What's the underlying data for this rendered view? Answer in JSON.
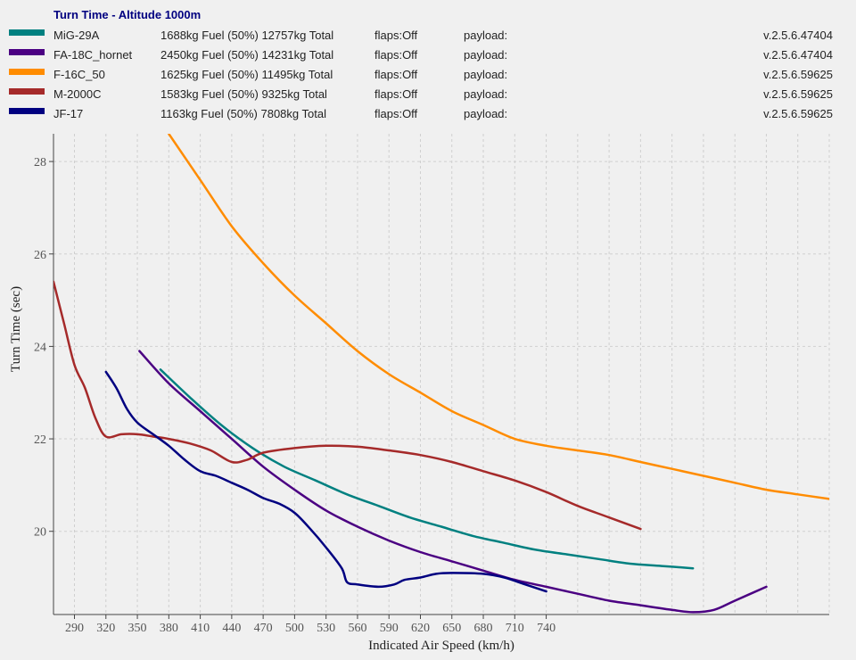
{
  "chart_data": {
    "type": "line",
    "title": "Turn Time - Altitude 1000m",
    "title_color": "#000080",
    "xlabel": "Indicated Air Speed (km/h)",
    "ylabel": "Turn Time (sec)",
    "xlim": [
      270,
      1010
    ],
    "ylim": [
      18.2,
      28.6
    ],
    "x_ticks": [
      290,
      320,
      350,
      380,
      410,
      440,
      470,
      500,
      530,
      560,
      590,
      620,
      650,
      680,
      710,
      740
    ],
    "x_gridlines": [
      290,
      320,
      350,
      380,
      410,
      440,
      470,
      500,
      530,
      560,
      590,
      620,
      650,
      680,
      710,
      740,
      770,
      800,
      830,
      860,
      890,
      920,
      950,
      980,
      1010
    ],
    "y_ticks": [
      20,
      22,
      24,
      26,
      28
    ],
    "grid": true,
    "legend_position": "top",
    "series": [
      {
        "name": "MiG-29A",
        "color": "#008080",
        "fuel": "1688kg Fuel (50%) 12757kg Total",
        "flaps": "flaps:Off",
        "payload": "payload:",
        "version": "v.2.5.6.47404",
        "points": [
          [
            372,
            23.5
          ],
          [
            400,
            22.9
          ],
          [
            430,
            22.3
          ],
          [
            460,
            21.8
          ],
          [
            490,
            21.4
          ],
          [
            520,
            21.1
          ],
          [
            550,
            20.8
          ],
          [
            580,
            20.55
          ],
          [
            610,
            20.3
          ],
          [
            640,
            20.1
          ],
          [
            670,
            19.9
          ],
          [
            700,
            19.75
          ],
          [
            730,
            19.6
          ],
          [
            760,
            19.5
          ],
          [
            790,
            19.4
          ],
          [
            820,
            19.3
          ],
          [
            850,
            19.25
          ],
          [
            880,
            19.2
          ]
        ]
      },
      {
        "name": "FA-18C_hornet",
        "color": "#4b0082",
        "fuel": "2450kg Fuel (50%) 14231kg Total",
        "flaps": "flaps:Off",
        "payload": "payload:",
        "version": "v.2.5.6.47404",
        "points": [
          [
            352,
            23.9
          ],
          [
            380,
            23.2
          ],
          [
            410,
            22.6
          ],
          [
            440,
            22.0
          ],
          [
            470,
            21.4
          ],
          [
            500,
            20.9
          ],
          [
            530,
            20.45
          ],
          [
            560,
            20.1
          ],
          [
            590,
            19.8
          ],
          [
            620,
            19.55
          ],
          [
            650,
            19.35
          ],
          [
            680,
            19.15
          ],
          [
            710,
            18.95
          ],
          [
            740,
            18.8
          ],
          [
            770,
            18.65
          ],
          [
            800,
            18.5
          ],
          [
            830,
            18.4
          ],
          [
            860,
            18.3
          ],
          [
            880,
            18.25
          ],
          [
            900,
            18.3
          ],
          [
            920,
            18.5
          ],
          [
            950,
            18.8
          ]
        ]
      },
      {
        "name": "F-16C_50",
        "color": "#ff8c00",
        "fuel": "1625kg Fuel (50%) 11495kg Total",
        "flaps": "flaps:Off",
        "payload": "payload:",
        "version": "v.2.5.6.59625",
        "points": [
          [
            380,
            28.6
          ],
          [
            410,
            27.6
          ],
          [
            440,
            26.6
          ],
          [
            470,
            25.8
          ],
          [
            500,
            25.1
          ],
          [
            530,
            24.5
          ],
          [
            560,
            23.9
          ],
          [
            590,
            23.4
          ],
          [
            620,
            23.0
          ],
          [
            650,
            22.6
          ],
          [
            680,
            22.3
          ],
          [
            710,
            22.0
          ],
          [
            740,
            21.85
          ],
          [
            770,
            21.75
          ],
          [
            800,
            21.65
          ],
          [
            830,
            21.5
          ],
          [
            860,
            21.35
          ],
          [
            890,
            21.2
          ],
          [
            920,
            21.05
          ],
          [
            950,
            20.9
          ],
          [
            980,
            20.8
          ],
          [
            1010,
            20.7
          ]
        ]
      },
      {
        "name": "M-2000C",
        "color": "#a52a2a",
        "fuel": "1583kg Fuel (50%) 9325kg Total",
        "flaps": "flaps:Off",
        "payload": "payload:",
        "version": "v.2.5.6.59625",
        "points": [
          [
            270,
            25.4
          ],
          [
            280,
            24.5
          ],
          [
            290,
            23.6
          ],
          [
            300,
            23.1
          ],
          [
            310,
            22.45
          ],
          [
            320,
            22.05
          ],
          [
            335,
            22.1
          ],
          [
            350,
            22.1
          ],
          [
            365,
            22.05
          ],
          [
            380,
            22.0
          ],
          [
            400,
            21.9
          ],
          [
            420,
            21.75
          ],
          [
            440,
            21.5
          ],
          [
            455,
            21.55
          ],
          [
            470,
            21.7
          ],
          [
            500,
            21.8
          ],
          [
            530,
            21.85
          ],
          [
            560,
            21.83
          ],
          [
            590,
            21.75
          ],
          [
            620,
            21.65
          ],
          [
            650,
            21.5
          ],
          [
            680,
            21.3
          ],
          [
            710,
            21.1
          ],
          [
            740,
            20.85
          ],
          [
            770,
            20.55
          ],
          [
            800,
            20.3
          ],
          [
            830,
            20.05
          ]
        ]
      },
      {
        "name": "JF-17",
        "color": "#000080",
        "fuel": "1163kg Fuel (50%) 7808kg Total",
        "flaps": "flaps:Off",
        "payload": "payload:",
        "version": "v.2.5.6.59625",
        "points": [
          [
            320,
            23.45
          ],
          [
            330,
            23.1
          ],
          [
            340,
            22.65
          ],
          [
            350,
            22.35
          ],
          [
            365,
            22.1
          ],
          [
            380,
            21.85
          ],
          [
            395,
            21.55
          ],
          [
            410,
            21.3
          ],
          [
            425,
            21.2
          ],
          [
            440,
            21.05
          ],
          [
            455,
            20.9
          ],
          [
            470,
            20.72
          ],
          [
            485,
            20.6
          ],
          [
            500,
            20.4
          ],
          [
            515,
            20.05
          ],
          [
            530,
            19.65
          ],
          [
            545,
            19.2
          ],
          [
            550,
            18.9
          ],
          [
            560,
            18.85
          ],
          [
            580,
            18.8
          ],
          [
            595,
            18.85
          ],
          [
            605,
            18.95
          ],
          [
            620,
            19.0
          ],
          [
            635,
            19.08
          ],
          [
            650,
            19.1
          ],
          [
            680,
            19.08
          ],
          [
            700,
            19.0
          ],
          [
            720,
            18.85
          ],
          [
            740,
            18.7
          ]
        ]
      }
    ]
  }
}
